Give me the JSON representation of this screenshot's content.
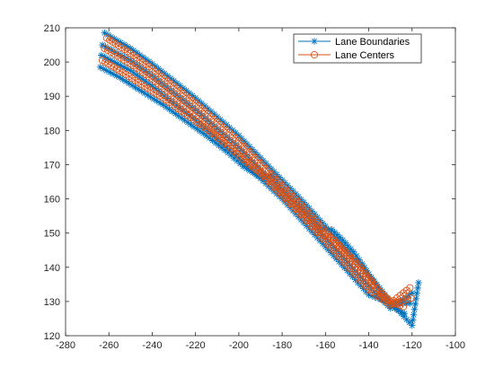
{
  "chart_data": {
    "type": "line",
    "xlim": [
      -280,
      -100
    ],
    "ylim": [
      120,
      210
    ],
    "x_ticks": [
      -280,
      -260,
      -240,
      -220,
      -200,
      -180,
      -160,
      -140,
      -120,
      -100
    ],
    "y_ticks": [
      120,
      130,
      140,
      150,
      160,
      170,
      180,
      190,
      200,
      210
    ],
    "grid": false,
    "legend_location": "top-right",
    "legend": [
      "Lane Boundaries",
      "Lane Centers"
    ],
    "series": [
      {
        "name": "Lane Boundaries",
        "marker": "asterisk",
        "color": "#0072BD",
        "lines": [
          [
            [
              -262,
              208.5
            ],
            [
              -250,
              204
            ],
            [
              -240,
              199.5
            ],
            [
              -230,
              194.5
            ],
            [
              -220,
              189.5
            ],
            [
              -210,
              184
            ],
            [
              -200,
              178.5
            ],
            [
              -190,
              172
            ],
            [
              -180,
              165.5
            ],
            [
              -170,
              159
            ],
            [
              -160,
              152
            ],
            [
              -150,
              145
            ],
            [
              -140,
              138
            ],
            [
              -130,
              130
            ],
            [
              -120,
              123
            ],
            [
              -117,
              135.5
            ]
          ],
          [
            [
              -263,
              205
            ],
            [
              -250,
              200.5
            ],
            [
              -240,
              196
            ],
            [
              -230,
              191
            ],
            [
              -220,
              186
            ],
            [
              -210,
              180.5
            ],
            [
              -200,
              175
            ],
            [
              -190,
              168.5
            ],
            [
              -180,
              162
            ],
            [
              -170,
              155.5
            ],
            [
              -160,
              148.5
            ],
            [
              -150,
              141.5
            ],
            [
              -140,
              134.5
            ],
            [
              -130,
              128
            ],
            [
              -120,
              132.5
            ]
          ],
          [
            [
              -263.5,
              202
            ],
            [
              -250,
              197.5
            ],
            [
              -240,
              193
            ],
            [
              -230,
              188
            ],
            [
              -220,
              183
            ],
            [
              -210,
              177.5
            ],
            [
              -200,
              172
            ],
            [
              -190,
              166
            ],
            [
              -180,
              160
            ],
            [
              -170,
              153
            ],
            [
              -160,
              146
            ],
            [
              -150,
              139
            ],
            [
              -140,
              132
            ],
            [
              -130,
              129.5
            ],
            [
              -121,
              129.5
            ]
          ],
          [
            [
              -264,
              198.5
            ],
            [
              -255,
              195.5
            ],
            [
              -245,
              191.5
            ],
            [
              -235,
              187.5
            ],
            [
              -225,
              183
            ],
            [
              -215,
              178.5
            ],
            [
              -205,
              173.5
            ],
            [
              -198,
              169.5
            ],
            [
              -192,
              167
            ],
            [
              -188,
              166
            ],
            [
              -185,
              167
            ],
            [
              -180,
              163
            ],
            [
              -170,
              157
            ],
            [
              -162,
              151.5
            ],
            [
              -157,
              151
            ],
            [
              -152,
              148
            ],
            [
              -147,
              144.5
            ],
            [
              -143,
              141
            ],
            [
              -138,
              136
            ],
            [
              -133,
              131.5
            ],
            [
              -128,
              128
            ],
            [
              -123.5,
              126.5
            ]
          ]
        ]
      },
      {
        "name": "Lane Centers",
        "marker": "circle",
        "color": "#D95319",
        "lines": [
          [
            [
              -261,
              207
            ],
            [
              -250,
              202.5
            ],
            [
              -240,
              198
            ],
            [
              -230,
              193
            ],
            [
              -220,
              188
            ],
            [
              -210,
              182.5
            ],
            [
              -200,
              177
            ],
            [
              -190,
              170.5
            ],
            [
              -180,
              164
            ],
            [
              -170,
              157.5
            ],
            [
              -160,
              150.5
            ],
            [
              -150,
              143.5
            ],
            [
              -140,
              136.5
            ],
            [
              -130,
              129.5
            ],
            [
              -121,
              134
            ]
          ],
          [
            [
              -262,
              204
            ],
            [
              -250,
              199.5
            ],
            [
              -240,
              195
            ],
            [
              -230,
              190
            ],
            [
              -220,
              185
            ],
            [
              -210,
              179.5
            ],
            [
              -200,
              174
            ],
            [
              -190,
              167.5
            ],
            [
              -180,
              161
            ],
            [
              -170,
              154.5
            ],
            [
              -160,
              147.5
            ],
            [
              -150,
              140.5
            ],
            [
              -140,
              133.5
            ],
            [
              -130,
              129
            ],
            [
              -120.5,
              131
            ]
          ],
          [
            [
              -263,
              200.5
            ],
            [
              -255,
              197.5
            ],
            [
              -245,
              193.5
            ],
            [
              -235,
              189.5
            ],
            [
              -225,
              185
            ],
            [
              -215,
              180.5
            ],
            [
              -205,
              175.5
            ],
            [
              -198,
              171.5
            ],
            [
              -192,
              168.5
            ],
            [
              -187,
              166.5
            ],
            [
              -180,
              162
            ],
            [
              -170,
              155.5
            ],
            [
              -162,
              150
            ],
            [
              -156,
              148
            ],
            [
              -150,
              144
            ],
            [
              -145,
              141
            ],
            [
              -140,
              137
            ],
            [
              -135,
              133
            ],
            [
              -130,
              130
            ],
            [
              -124,
              128.5
            ]
          ]
        ]
      }
    ]
  }
}
